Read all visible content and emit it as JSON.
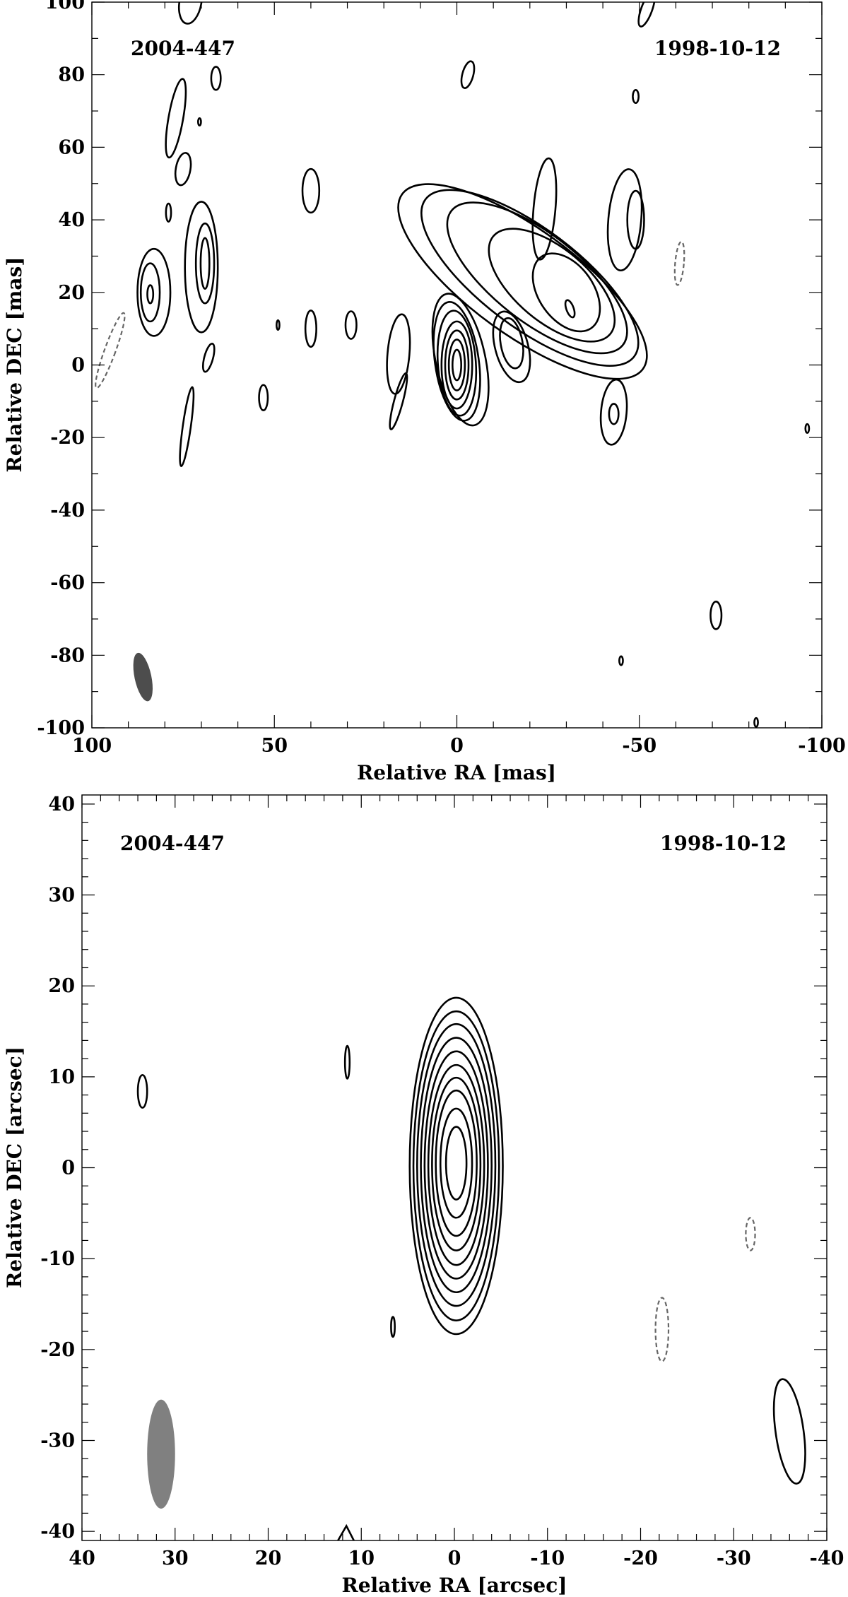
{
  "chart_data": [
    {
      "type": "contour",
      "source_label": "2004-447",
      "date_label": "1998-10-12",
      "xlabel": "Relative RA [mas]",
      "ylabel": "Relative DEC [mas]",
      "xlim": [
        100,
        -100
      ],
      "ylim": [
        -100,
        100
      ],
      "xticks": [
        100,
        50,
        0,
        -50,
        -100
      ],
      "yticks": [
        100,
        80,
        60,
        40,
        20,
        0,
        -20,
        -40,
        -60,
        -80,
        -100
      ],
      "xminor_step": 10,
      "yminor_step": 10,
      "beam": {
        "x": 86,
        "y": -86,
        "rx": 2.3,
        "ry": 6.8,
        "angle_deg": -12,
        "color": "#4d4d4d"
      },
      "contours": [
        {
          "cx": 0,
          "cy": 0,
          "rx": 1.2,
          "ry": 4.2,
          "angle": 0,
          "sign": 1
        },
        {
          "cx": 0,
          "cy": 0,
          "rx": 2.2,
          "ry": 7,
          "angle": 0,
          "sign": 1
        },
        {
          "cx": 0,
          "cy": 0,
          "rx": 3.2,
          "ry": 9.5,
          "angle": 0,
          "sign": 1
        },
        {
          "cx": 0,
          "cy": 0,
          "rx": 4.2,
          "ry": 12,
          "angle": 0,
          "sign": 1
        },
        {
          "cx": 0,
          "cy": 0.5,
          "rx": 5.2,
          "ry": 14.5,
          "angle": -4,
          "sign": 1
        },
        {
          "cx": 0,
          "cy": 1,
          "rx": 6,
          "ry": 16.5,
          "angle": -8,
          "sign": 1
        },
        {
          "cx": -1,
          "cy": 1.5,
          "rx": 6.8,
          "ry": 18.5,
          "angle": -12,
          "sign": 1
        },
        {
          "cx": -15,
          "cy": 6,
          "rx": 3,
          "ry": 7,
          "angle": -10,
          "sign": 1
        },
        {
          "cx": -15,
          "cy": 5,
          "rx": 4.5,
          "ry": 10,
          "angle": -15,
          "sign": 1
        },
        {
          "cx": -31,
          "cy": 15.5,
          "rx": 1,
          "ry": 2.5,
          "angle": -20,
          "sign": 1
        },
        {
          "cx": -30,
          "cy": 20,
          "rx": 7.5,
          "ry": 12,
          "angle": -35,
          "sign": 1
        },
        {
          "cx": -26,
          "cy": 22,
          "rx": 10,
          "ry": 21,
          "angle": -50,
          "sign": 1
        },
        {
          "cx": -22,
          "cy": 24,
          "rx": 12,
          "ry": 30,
          "angle": -52,
          "sign": 1
        },
        {
          "cx": -20,
          "cy": 24,
          "rx": 13.5,
          "ry": 36,
          "angle": -53,
          "sign": 1
        },
        {
          "cx": -18,
          "cy": 23,
          "rx": 14.5,
          "ry": 41,
          "angle": -54,
          "sign": 1
        },
        {
          "cx": -24,
          "cy": 43,
          "rx": 3,
          "ry": 14,
          "angle": 5,
          "sign": 1
        },
        {
          "cx": -49,
          "cy": 40,
          "rx": 2.3,
          "ry": 8,
          "angle": 0,
          "sign": 1
        },
        {
          "cx": -46,
          "cy": 40,
          "rx": 4.5,
          "ry": 14,
          "angle": 5,
          "sign": 1
        },
        {
          "cx": -43,
          "cy": -13.5,
          "rx": 1.3,
          "ry": 2.8,
          "angle": 0,
          "sign": 1
        },
        {
          "cx": -43,
          "cy": -13,
          "rx": 3.5,
          "ry": 9,
          "angle": 5,
          "sign": 1
        },
        {
          "cx": -3,
          "cy": 80,
          "rx": 1.5,
          "ry": 3.8,
          "angle": 15,
          "sign": 1
        },
        {
          "cx": -49,
          "cy": 74,
          "rx": 0.8,
          "ry": 1.8,
          "angle": 0,
          "sign": 1
        },
        {
          "cx": -52,
          "cy": 98,
          "rx": 1.5,
          "ry": 5,
          "angle": 20,
          "sign": 1
        },
        {
          "cx": 40,
          "cy": 48,
          "rx": 2.3,
          "ry": 6,
          "angle": 0,
          "sign": 1
        },
        {
          "cx": 16,
          "cy": 3,
          "rx": 3,
          "ry": 11,
          "angle": 5,
          "sign": 1
        },
        {
          "cx": 16,
          "cy": -10,
          "rx": 1.2,
          "ry": 8,
          "angle": 15,
          "sign": 1
        },
        {
          "cx": 29,
          "cy": 11,
          "rx": 1.5,
          "ry": 3.8,
          "angle": 0,
          "sign": 1
        },
        {
          "cx": 40,
          "cy": 10,
          "rx": 1.5,
          "ry": 5,
          "angle": 0,
          "sign": 1
        },
        {
          "cx": 49,
          "cy": 11,
          "rx": 0.4,
          "ry": 1.3,
          "angle": 0,
          "sign": 1
        },
        {
          "cx": 53,
          "cy": -9,
          "rx": 1.2,
          "ry": 3.5,
          "angle": 0,
          "sign": 1
        },
        {
          "cx": 84,
          "cy": 19.5,
          "rx": 0.8,
          "ry": 2.5,
          "angle": 0,
          "sign": 1
        },
        {
          "cx": 84,
          "cy": 20,
          "rx": 2.6,
          "ry": 8,
          "angle": 0,
          "sign": 1
        },
        {
          "cx": 83,
          "cy": 20,
          "rx": 4.5,
          "ry": 12,
          "angle": 0,
          "sign": 1
        },
        {
          "cx": 69,
          "cy": 28,
          "rx": 1.2,
          "ry": 7,
          "angle": 0,
          "sign": 1
        },
        {
          "cx": 69,
          "cy": 28,
          "rx": 2.5,
          "ry": 11,
          "angle": 0,
          "sign": 1
        },
        {
          "cx": 70,
          "cy": 27,
          "rx": 4.5,
          "ry": 18,
          "angle": 0,
          "sign": 1
        },
        {
          "cx": 79,
          "cy": 42,
          "rx": 0.7,
          "ry": 2.5,
          "angle": 0,
          "sign": 1
        },
        {
          "cx": 75,
          "cy": 54,
          "rx": 2,
          "ry": 4.5,
          "angle": 10,
          "sign": 1
        },
        {
          "cx": 77,
          "cy": 68,
          "rx": 2,
          "ry": 11,
          "angle": 10,
          "sign": 1
        },
        {
          "cx": 70.5,
          "cy": 67,
          "rx": 0.4,
          "ry": 1,
          "angle": 0,
          "sign": 1
        },
        {
          "cx": 66,
          "cy": 79,
          "rx": 1.3,
          "ry": 3.2,
          "angle": 0,
          "sign": 1
        },
        {
          "cx": 73,
          "cy": 100,
          "rx": 3,
          "ry": 6,
          "angle": 10,
          "sign": 1
        },
        {
          "cx": 68,
          "cy": 2,
          "rx": 1.2,
          "ry": 4,
          "angle": 15,
          "sign": 1
        },
        {
          "cx": 74,
          "cy": -17,
          "rx": 1.1,
          "ry": 11,
          "angle": 8,
          "sign": 1
        },
        {
          "cx": -71,
          "cy": -69,
          "rx": 1.5,
          "ry": 3.8,
          "angle": 0,
          "sign": 1
        },
        {
          "cx": -45,
          "cy": -81.5,
          "rx": 0.5,
          "ry": 1.2,
          "angle": 0,
          "sign": 1
        },
        {
          "cx": -82,
          "cy": -98.5,
          "rx": 0.5,
          "ry": 1.2,
          "angle": 0,
          "sign": 1
        },
        {
          "cx": -96,
          "cy": -17.5,
          "rx": 0.5,
          "ry": 1.2,
          "angle": 0,
          "sign": 1
        },
        {
          "cx": 95,
          "cy": 4,
          "rx": 1.5,
          "ry": 11,
          "angle": 20,
          "sign": -1
        },
        {
          "cx": -61,
          "cy": 28,
          "rx": 1.2,
          "ry": 6,
          "angle": 5,
          "sign": -1
        }
      ]
    },
    {
      "type": "contour",
      "source_label": "2004-447",
      "date_label": "1998-10-12",
      "xlabel": "Relative RA [arcsec]",
      "ylabel": "Relative DEC [arcsec]",
      "xlim": [
        40,
        -40
      ],
      "ylim": [
        -41,
        41
      ],
      "xticks": [
        40,
        30,
        20,
        10,
        0,
        -10,
        -20,
        -30,
        -40
      ],
      "yticks": [
        40,
        30,
        20,
        10,
        0,
        -10,
        -20,
        -30,
        -40
      ],
      "xminor_step": 2,
      "yminor_step": 2,
      "beam": {
        "x": 31.5,
        "y": -31.5,
        "rx": 1.5,
        "ry": 6,
        "angle_deg": 0,
        "color": "#808080"
      },
      "contours": [
        {
          "cx": -0.2,
          "cy": 0.5,
          "rx": 1.1,
          "ry": 4,
          "angle": 0,
          "sign": 1
        },
        {
          "cx": -0.2,
          "cy": 0.5,
          "rx": 1.7,
          "ry": 6,
          "angle": 0,
          "sign": 1
        },
        {
          "cx": -0.2,
          "cy": 0.5,
          "rx": 2.2,
          "ry": 8,
          "angle": 0,
          "sign": 1
        },
        {
          "cx": -0.2,
          "cy": 0.4,
          "rx": 2.6,
          "ry": 9.5,
          "angle": 0,
          "sign": 1
        },
        {
          "cx": -0.2,
          "cy": 0.3,
          "rx": 3,
          "ry": 11,
          "angle": 0,
          "sign": 1
        },
        {
          "cx": -0.2,
          "cy": 0.3,
          "rx": 3.4,
          "ry": 12.5,
          "angle": 0,
          "sign": 1
        },
        {
          "cx": -0.2,
          "cy": 0.3,
          "rx": 3.8,
          "ry": 14,
          "angle": 0,
          "sign": 1
        },
        {
          "cx": -0.2,
          "cy": 0.3,
          "rx": 4.2,
          "ry": 15.5,
          "angle": 0,
          "sign": 1
        },
        {
          "cx": -0.2,
          "cy": 0.2,
          "rx": 4.6,
          "ry": 17,
          "angle": 0,
          "sign": 1
        },
        {
          "cx": -0.2,
          "cy": 0.2,
          "rx": 5,
          "ry": 18.5,
          "angle": 0,
          "sign": 1
        },
        {
          "cx": 11.5,
          "cy": 11.6,
          "rx": 0.25,
          "ry": 1.8,
          "angle": 0,
          "sign": 1
        },
        {
          "cx": 33.5,
          "cy": 8.4,
          "rx": 0.5,
          "ry": 1.8,
          "angle": 0,
          "sign": 1
        },
        {
          "cx": 6.6,
          "cy": -17.5,
          "rx": 0.2,
          "ry": 1.1,
          "angle": 0,
          "sign": 1
        },
        {
          "cx": -36,
          "cy": -29,
          "rx": 1.5,
          "ry": 5.8,
          "angle": -8,
          "sign": 1
        },
        {
          "cx": -22.3,
          "cy": -17.8,
          "rx": 0.7,
          "ry": 3.5,
          "angle": 0,
          "sign": -1
        },
        {
          "cx": -31.8,
          "cy": -7.3,
          "rx": 0.5,
          "ry": 1.8,
          "angle": 0,
          "sign": -1
        }
      ],
      "partial_contours": [
        {
          "points": [
            [
              12.5,
              -41
            ],
            [
              11.6,
              -39.4
            ],
            [
              10.8,
              -41
            ]
          ],
          "sign": 1
        }
      ]
    }
  ]
}
